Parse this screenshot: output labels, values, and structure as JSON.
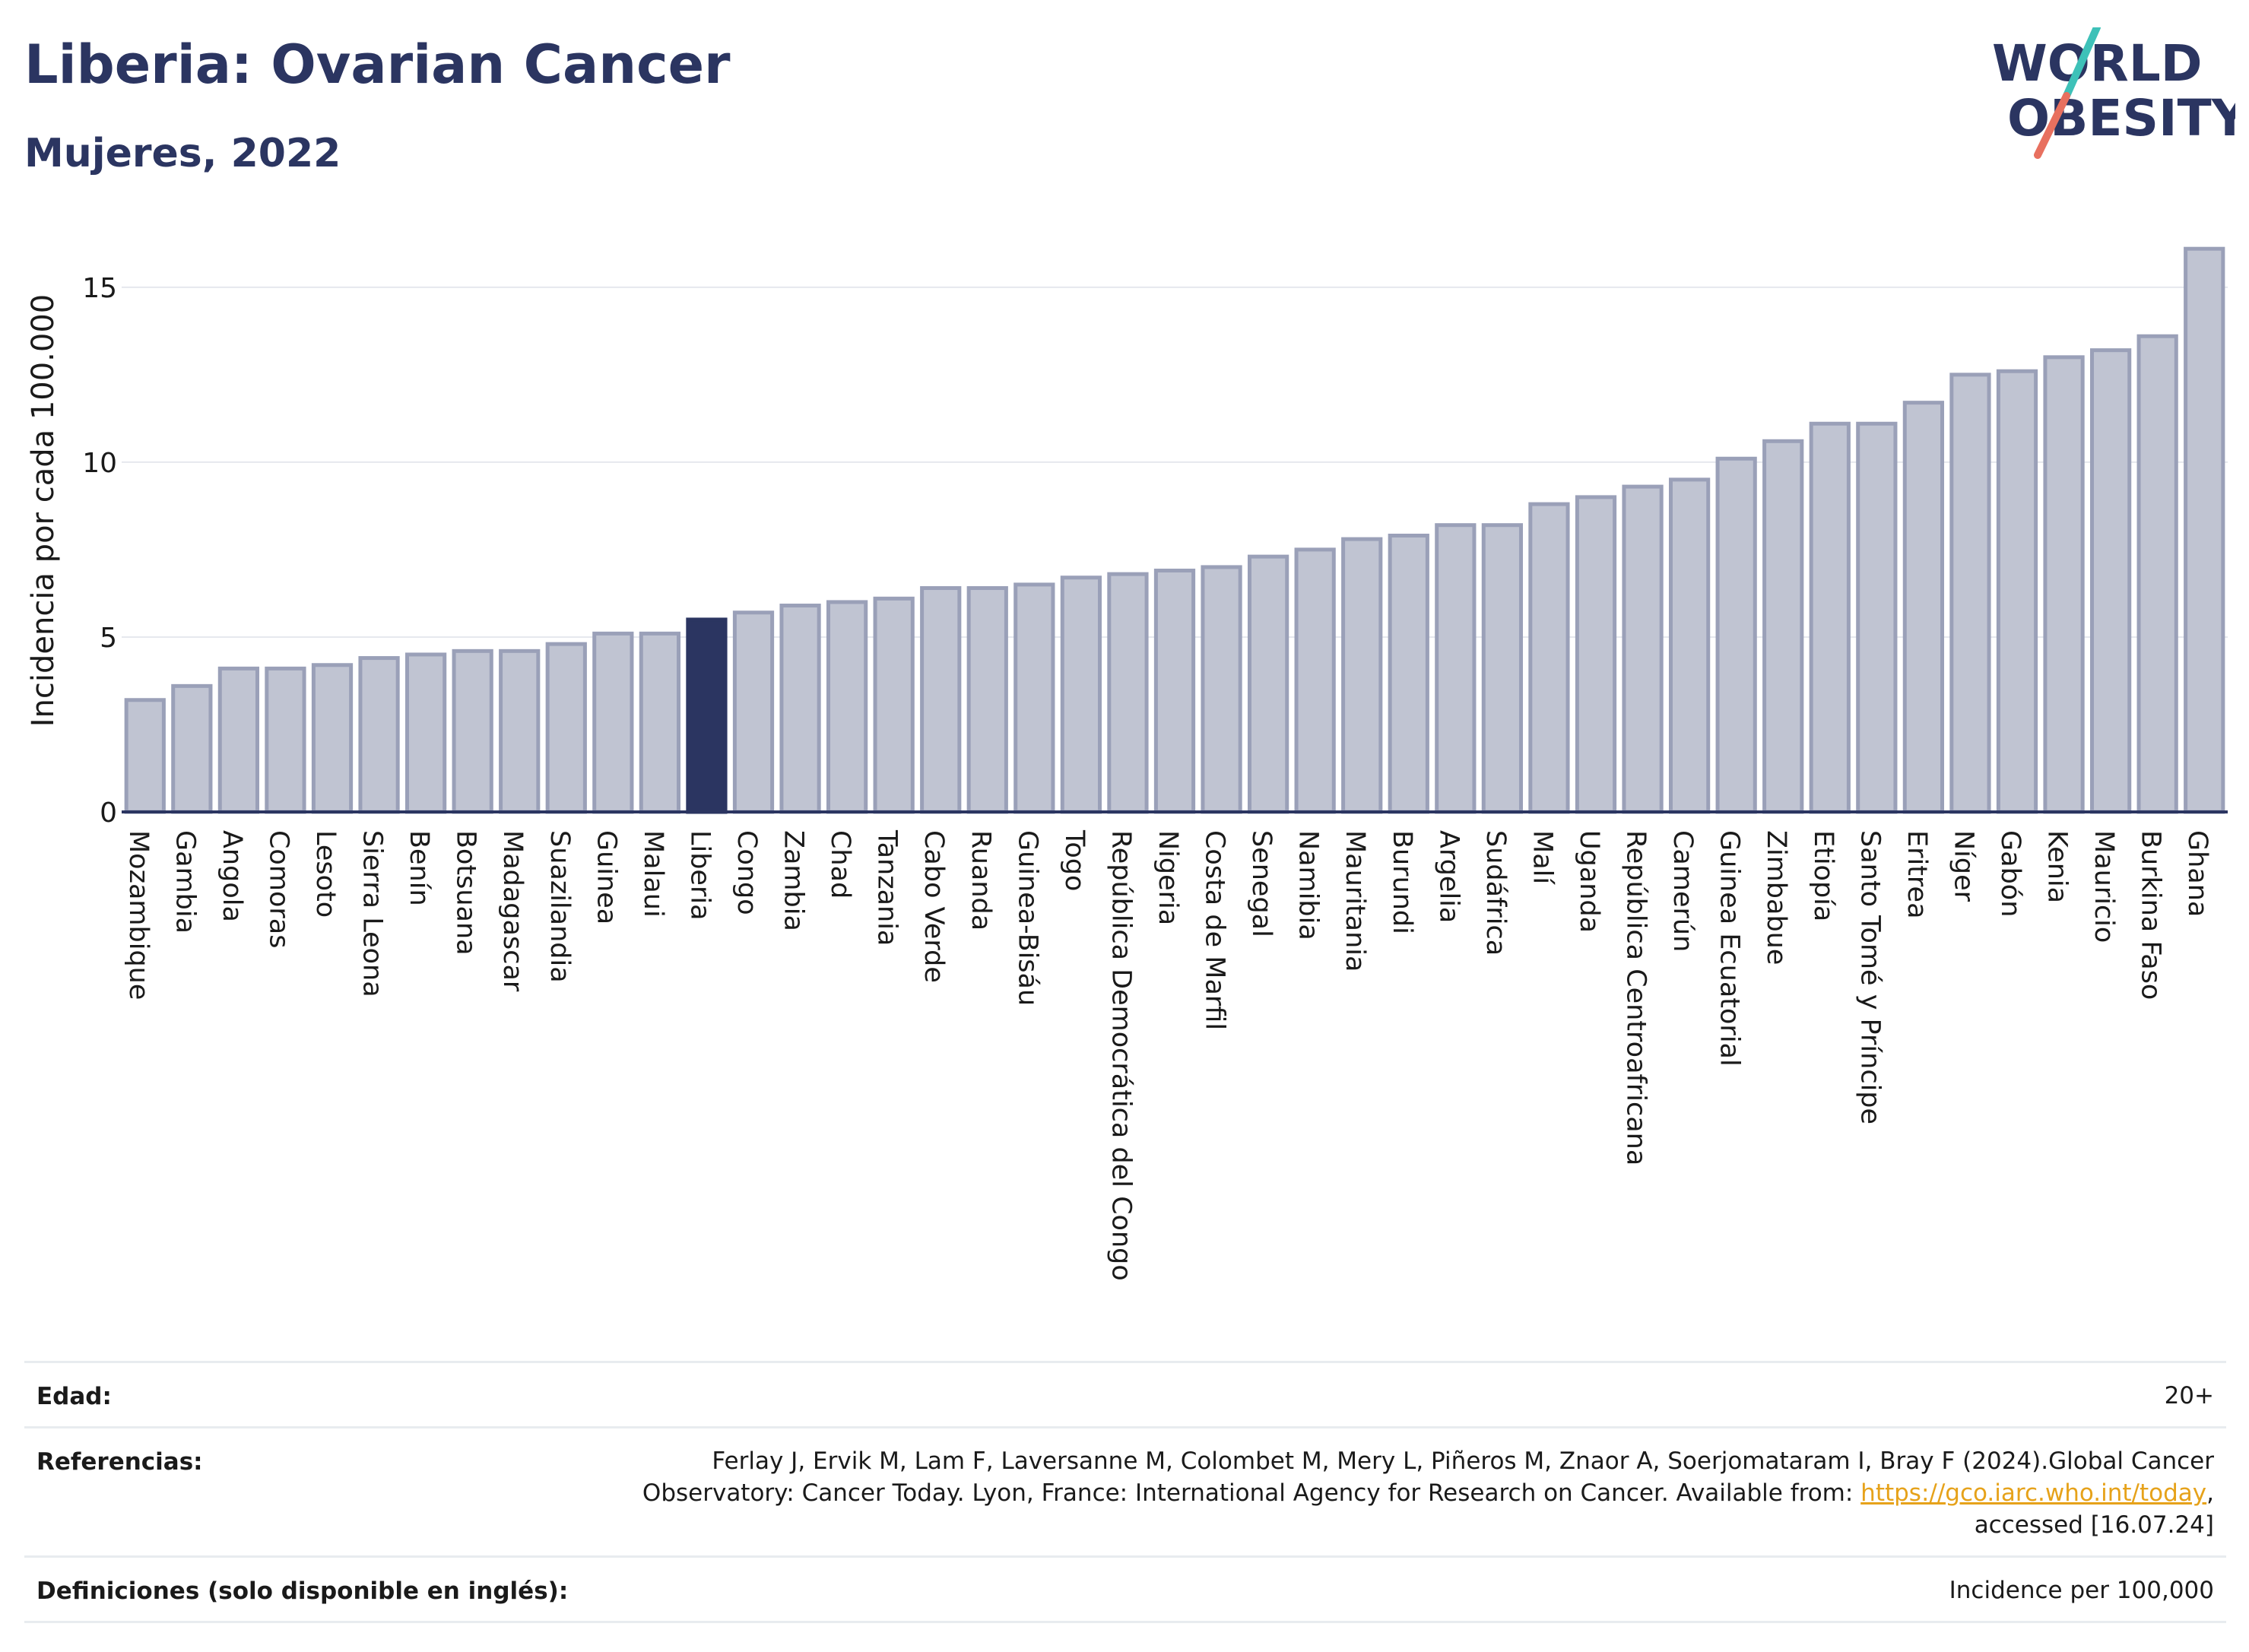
{
  "header": {
    "title": "Liberia: Ovarian Cancer",
    "subtitle": "Mujeres, 2022",
    "logo_text_top": "WORLD",
    "logo_text_bottom": "OBESITY"
  },
  "chart_data": {
    "type": "bar",
    "ylabel": "Incidencia por cada 100.000",
    "ylim": [
      0,
      16.8
    ],
    "yticks": [
      0,
      5,
      10,
      15
    ],
    "highlight": "Liberia",
    "colors": {
      "bar": "#c0c4d2",
      "bar_border": "#9aa0b8",
      "highlight": "#2b3561",
      "grid": "#e6e8ee",
      "axis": "#2b3561"
    },
    "categories": [
      "Mozambique",
      "Gambia",
      "Angola",
      "Comoras",
      "Lesoto",
      "Sierra Leona",
      "Benín",
      "Botsuana",
      "Madagascar",
      "Suazilandia",
      "Guinea",
      "Malaui",
      "Liberia",
      "Congo",
      "Zambia",
      "Chad",
      "Tanzania",
      "Cabo Verde",
      "Ruanda",
      "Guinea-Bisáu",
      "Togo",
      "República Democrática del Congo",
      "Nigeria",
      "Costa de Marfil",
      "Senegal",
      "Namibia",
      "Mauritania",
      "Burundi",
      "Argelia",
      "Sudáfrica",
      "Malí",
      "Uganda",
      "República Centroafricana",
      "Camerún",
      "Guinea Ecuatorial",
      "Zimbabue",
      "Etiopía",
      "Santo Tomé y Príncipe",
      "Eritrea",
      "Níger",
      "Gabón",
      "Kenia",
      "Mauricio",
      "Burkina Faso",
      "Ghana"
    ],
    "values": [
      3.2,
      3.6,
      4.1,
      4.1,
      4.2,
      4.4,
      4.5,
      4.6,
      4.6,
      4.8,
      5.1,
      5.1,
      5.5,
      5.7,
      5.9,
      6.0,
      6.1,
      6.4,
      6.4,
      6.5,
      6.7,
      6.8,
      6.9,
      7.0,
      7.3,
      7.5,
      7.8,
      7.9,
      8.2,
      8.2,
      8.8,
      9.0,
      9.3,
      9.5,
      10.1,
      10.6,
      11.1,
      11.1,
      11.7,
      12.5,
      12.6,
      13.0,
      13.2,
      13.6,
      16.1
    ]
  },
  "info": {
    "age_label": "Edad:",
    "age_value": "20+",
    "refs_label": "Referencias:",
    "refs_line1": "Ferlay J, Ervik M, Lam F, Laversanne M, Colombet M, Mery L, Piñeros M, Znaor A, Soerjomataram I, Bray F (2024).Global Cancer",
    "refs_line2_pre": "Observatory: Cancer Today. Lyon, France: International Agency for Research on Cancer. Available from: ",
    "refs_link": "https://gco.iarc.who.int/today",
    "refs_line2_post": ",",
    "refs_line3": "accessed [16.07.24]",
    "defs_label": "Definiciones (solo disponible en inglés):",
    "defs_value": "Incidence per 100,000"
  }
}
